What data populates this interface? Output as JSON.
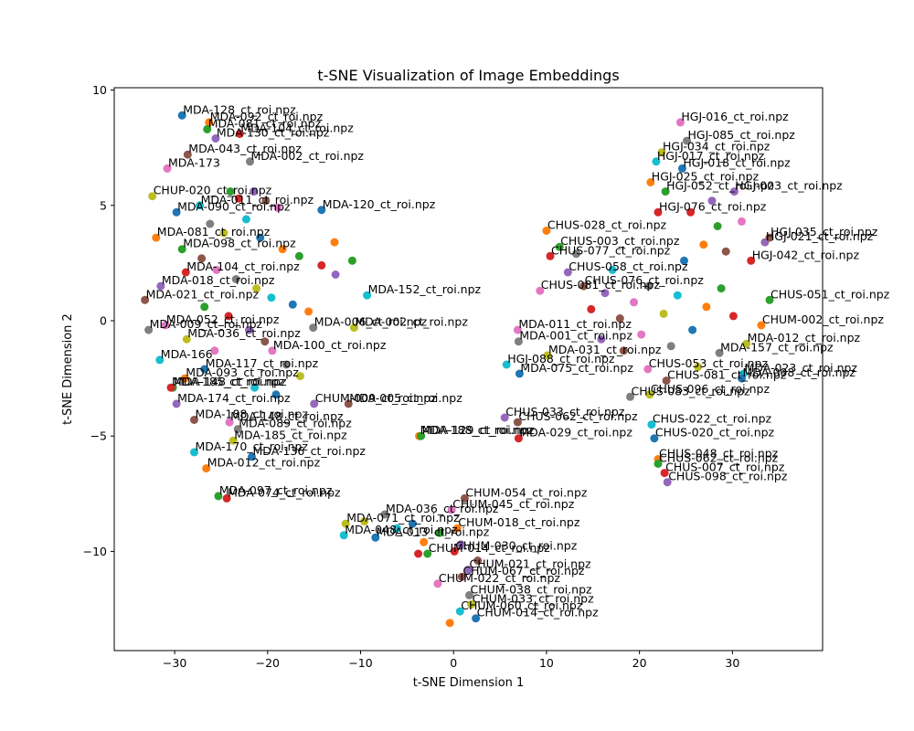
{
  "chart_data": {
    "type": "scatter",
    "title": "t-SNE Visualization of Image Embeddings",
    "xlabel": "t-SNE Dimension 1",
    "ylabel": "t-SNE Dimension 2",
    "xlim": [
      -36.5,
      39.7
    ],
    "ylim": [
      -14.3,
      10.1
    ],
    "xticks": [
      -30,
      -20,
      -10,
      0,
      10,
      20,
      30
    ],
    "yticks": [
      -10,
      -5,
      0,
      5,
      10
    ],
    "grid": false,
    "legend": "none",
    "palette": [
      "#1f77b4",
      "#ff7f0e",
      "#2ca02c",
      "#d62728",
      "#9467bd",
      "#8c564b",
      "#e377c2",
      "#7f7f7f",
      "#bcbd22",
      "#17becf"
    ],
    "points": [
      {
        "x": -29.2,
        "y": 8.9,
        "label": "MDA-128_ct_roi.npz"
      },
      {
        "x": -26.3,
        "y": 8.6,
        "label": "MDA-092_ct_roi.npz"
      },
      {
        "x": -26.5,
        "y": 8.3,
        "label": "MDA-081_ct_roi.npz"
      },
      {
        "x": -23.0,
        "y": 8.1,
        "label": "MDA-104_ct_roi.npz"
      },
      {
        "x": -25.6,
        "y": 7.9,
        "label": "MDA-130_ct_roi.npz"
      },
      {
        "x": -28.6,
        "y": 7.2,
        "label": "MDA-043_ct_roi.npz"
      },
      {
        "x": -30.8,
        "y": 6.6,
        "label": "MDA-173"
      },
      {
        "x": -21.9,
        "y": 6.9,
        "label": "MDA-002_ct_roi.npz"
      },
      {
        "x": -32.4,
        "y": 5.4,
        "label": "CHUP-020_ct_roi.npz"
      },
      {
        "x": -27.3,
        "y": 5.0,
        "label": "MDA-011_ct_roi.npz"
      },
      {
        "x": -29.8,
        "y": 4.7,
        "label": "MDA-090_ct_roi.npz"
      },
      {
        "x": -32.0,
        "y": 3.6,
        "label": "MDA-081_ct_roi.npz"
      },
      {
        "x": -29.2,
        "y": 3.1,
        "label": "MDA-098_ct_roi.npz"
      },
      {
        "x": -28.8,
        "y": 2.1,
        "label": "MDA-104_ct_roi.npz"
      },
      {
        "x": -31.5,
        "y": 1.5,
        "label": "MDA-018_ct_roi.npz"
      },
      {
        "x": -33.2,
        "y": 0.9,
        "label": "MDA-021_ct_roi.npz"
      },
      {
        "x": -31.0,
        "y": -0.2,
        "label": "MDA-052_ct_roi.npz"
      },
      {
        "x": -32.8,
        "y": -0.4,
        "label": "MDA-009_ct_roi.npz"
      },
      {
        "x": -28.7,
        "y": -0.8,
        "label": "MDA-036_ct_roi.npz"
      },
      {
        "x": -31.6,
        "y": -1.7,
        "label": "MDA-166"
      },
      {
        "x": -26.8,
        "y": -2.1,
        "label": "MDA-117_ct_roi.npz"
      },
      {
        "x": -28.9,
        "y": -2.5,
        "label": "MDA-093_ct_roi.npz"
      },
      {
        "x": -30.2,
        "y": -2.9,
        "label": "MDA-148_ct_roi.npz"
      },
      {
        "x": -30.4,
        "y": -2.9,
        "label": "MDA-185_ct_roi.npz"
      },
      {
        "x": -29.8,
        "y": -3.6,
        "label": "MDA-174_ct_roi.npz"
      },
      {
        "x": -27.9,
        "y": -4.3,
        "label": "MDA-188_ct_roi.npz"
      },
      {
        "x": -24.1,
        "y": -4.4,
        "label": "MDA-148_ct_roi.npz"
      },
      {
        "x": -23.2,
        "y": -4.7,
        "label": "MDA-089_ct_roi.npz"
      },
      {
        "x": -23.7,
        "y": -5.2,
        "label": "MDA-185_ct_roi.npz"
      },
      {
        "x": -27.9,
        "y": -5.7,
        "label": "MDA-170_ct_roi.npz"
      },
      {
        "x": -21.7,
        "y": -5.9,
        "label": "MDA-136_ct_roi.npz"
      },
      {
        "x": -26.6,
        "y": -6.4,
        "label": "MDA-012_ct_roi.npz"
      },
      {
        "x": -25.3,
        "y": -7.6,
        "label": "MDA-097_ct_roi.npz"
      },
      {
        "x": -24.4,
        "y": -7.7,
        "label": "MDA-074_ct_roi.npz"
      },
      {
        "x": -15.0,
        "y": -3.6,
        "label": "CHUM-009_ct_roi.npz"
      },
      {
        "x": -11.3,
        "y": -3.6,
        "label": "MDA-005_ct_roi.npz"
      },
      {
        "x": -19.5,
        "y": -1.3,
        "label": "MDA-100_ct_roi.npz"
      },
      {
        "x": -15.1,
        "y": -0.3,
        "label": "MDA-006_ct_roi.npz"
      },
      {
        "x": -10.7,
        "y": -0.3,
        "label": "MDA-002_ct_roi.npz"
      },
      {
        "x": -9.3,
        "y": 1.1,
        "label": "MDA-152_ct_roi.npz"
      },
      {
        "x": -14.2,
        "y": 4.8,
        "label": "MDA-120_ct_roi.npz"
      },
      {
        "x": -3.7,
        "y": -5.0,
        "label": "MDA-188_ct_roi.npz"
      },
      {
        "x": -3.5,
        "y": -5.0,
        "label": "MDA-129_ct_roi.npz"
      },
      {
        "x": 7.0,
        "y": -5.1,
        "label": "MDA-029_ct_roi.npz"
      },
      {
        "x": 5.5,
        "y": -4.2,
        "label": "CHUS-033_ct_roi.npz"
      },
      {
        "x": 6.9,
        "y": -4.4,
        "label": "CHUS-062_ct_roi.npz"
      },
      {
        "x": 6.9,
        "y": -0.4,
        "label": "MDA-011_ct_roi.npz"
      },
      {
        "x": 7.0,
        "y": -0.9,
        "label": "MDA-001_ct_roi.npz"
      },
      {
        "x": 10.1,
        "y": -1.5,
        "label": "MDA-031_ct_roi.npz"
      },
      {
        "x": 5.7,
        "y": -1.9,
        "label": "HGJ-088_ct_roi.npz"
      },
      {
        "x": 7.1,
        "y": -2.3,
        "label": "MDA-075_ct_roi.npz"
      },
      {
        "x": 10.0,
        "y": 3.9,
        "label": "CHUS-028_ct_roi.npz"
      },
      {
        "x": 11.4,
        "y": 3.2,
        "label": "CHUS-003_ct_roi.npz"
      },
      {
        "x": 10.4,
        "y": 2.8,
        "label": "CHUS-077_ct_roi.npz"
      },
      {
        "x": 12.3,
        "y": 2.1,
        "label": "CHUS-058_ct_roi.npz"
      },
      {
        "x": 14.0,
        "y": 1.5,
        "label": "CHUS-076_ct_roi.npz"
      },
      {
        "x": 9.3,
        "y": 1.3,
        "label": "CHUS-081_ct_roi.npz"
      },
      {
        "x": 19.0,
        "y": -3.3,
        "label": "CHUS-083_ct_roi.npz"
      },
      {
        "x": 21.1,
        "y": -3.2,
        "label": "CHUS-096_ct_roi.npz"
      },
      {
        "x": 21.3,
        "y": -4.5,
        "label": "CHUS-022_ct_roi.npz"
      },
      {
        "x": 21.6,
        "y": -5.1,
        "label": "CHUS-020_ct_roi.npz"
      },
      {
        "x": 22.0,
        "y": -6.0,
        "label": "CHUS-048_ct_roi.npz"
      },
      {
        "x": 22.0,
        "y": -6.2,
        "label": "CHUS-062_ct_roi.npz"
      },
      {
        "x": 22.7,
        "y": -6.6,
        "label": "CHUS-007_ct_roi.npz"
      },
      {
        "x": 23.0,
        "y": -7.0,
        "label": "CHUS-098_ct_roi.npz"
      },
      {
        "x": 22.9,
        "y": -2.6,
        "label": "CHUS-081_ct_roi.npz"
      },
      {
        "x": 20.9,
        "y": -2.1,
        "label": "CHUS-053_ct_roi.npz"
      },
      {
        "x": 28.6,
        "y": -1.4,
        "label": "MDA-157_ct_roi.npz"
      },
      {
        "x": 31.5,
        "y": -1.0,
        "label": "MDA-012_ct_roi.npz"
      },
      {
        "x": 31.2,
        "y": -2.3,
        "label": "MDA-023_ct_roi.npz"
      },
      {
        "x": 31.0,
        "y": -2.5,
        "label": "MDA-008_ct_roi.npz"
      },
      {
        "x": 33.1,
        "y": -0.2,
        "label": "CHUM-002_ct_roi.npz"
      },
      {
        "x": 34.0,
        "y": 0.9,
        "label": "CHUS-051_ct_roi.npz"
      },
      {
        "x": 32.0,
        "y": 2.6,
        "label": "HGJ-042_ct_roi.npz"
      },
      {
        "x": 33.5,
        "y": 3.4,
        "label": "HGJ-021_ct_roi.npz"
      },
      {
        "x": 34.0,
        "y": 3.6,
        "label": "HGJ-035_ct_roi.npz"
      },
      {
        "x": 24.4,
        "y": 8.6,
        "label": "HGJ-016_ct_roi.npz"
      },
      {
        "x": 25.1,
        "y": 7.8,
        "label": "HGJ-085_ct_roi.npz"
      },
      {
        "x": 22.4,
        "y": 7.3,
        "label": "HGJ-034_ct_roi.npz"
      },
      {
        "x": 21.8,
        "y": 6.9,
        "label": "HGJ-017_ct_roi.npz"
      },
      {
        "x": 24.6,
        "y": 6.6,
        "label": "HGJ-018_ct_roi.npz"
      },
      {
        "x": 21.2,
        "y": 6.0,
        "label": "HGJ-025_ct_roi.npz"
      },
      {
        "x": 22.8,
        "y": 5.6,
        "label": "HGJ-052_ct_roi.npz"
      },
      {
        "x": 22.0,
        "y": 4.7,
        "label": "HGJ-076_ct_roi.npz"
      },
      {
        "x": 30.2,
        "y": 5.6,
        "label": "HGJ-003_ct_roi.npz"
      },
      {
        "x": 1.2,
        "y": -7.7,
        "label": "CHUM-054_ct_roi.npz"
      },
      {
        "x": -0.2,
        "y": -8.2,
        "label": "CHUM-045_ct_roi.npz"
      },
      {
        "x": -7.4,
        "y": -8.4,
        "label": "MDA-036_ct_roi.npz"
      },
      {
        "x": -11.6,
        "y": -8.8,
        "label": "MDA-071_ct_roi.npz"
      },
      {
        "x": -11.8,
        "y": -9.3,
        "label": "MDA-048_ct_roi.npz"
      },
      {
        "x": -8.4,
        "y": -9.4,
        "label": "MDA-013_ct_roi.npz"
      },
      {
        "x": 0.4,
        "y": -9.0,
        "label": "CHUM-018_ct_roi.npz"
      },
      {
        "x": -2.8,
        "y": -10.1,
        "label": "CHUM-014_ct_roi.npz"
      },
      {
        "x": 0.1,
        "y": -10.0,
        "label": "CHUM-030_ct_roi.npz"
      },
      {
        "x": 1.6,
        "y": -10.8,
        "label": "CHUM-021_ct_roi.npz"
      },
      {
        "x": 0.9,
        "y": -11.1,
        "label": "CHUM-067_ct_roi.npz"
      },
      {
        "x": -1.7,
        "y": -11.4,
        "label": "CHUM-022_ct_roi.npz"
      },
      {
        "x": 1.7,
        "y": -11.9,
        "label": "CHUM-038_ct_roi.npz"
      },
      {
        "x": 1.9,
        "y": -12.3,
        "label": "CHUM-033_ct_roi.npz"
      },
      {
        "x": 0.7,
        "y": -12.6,
        "label": "CHUM-060_ct_roi.npz"
      },
      {
        "x": 2.4,
        "y": -12.9,
        "label": "CHUM-014_ct_roi.npz"
      },
      {
        "x": -0.4,
        "y": -13.1,
        "label": ""
      },
      {
        "x": -24.0,
        "y": 5.6,
        "label": ""
      },
      {
        "x": -23.1,
        "y": 5.3,
        "label": ""
      },
      {
        "x": -21.5,
        "y": 5.6,
        "label": ""
      },
      {
        "x": -20.2,
        "y": 5.2,
        "label": ""
      },
      {
        "x": -18.9,
        "y": 4.9,
        "label": ""
      },
      {
        "x": -26.2,
        "y": 4.2,
        "label": ""
      },
      {
        "x": -24.7,
        "y": 3.8,
        "label": ""
      },
      {
        "x": -22.3,
        "y": 4.4,
        "label": ""
      },
      {
        "x": -20.8,
        "y": 3.6,
        "label": ""
      },
      {
        "x": -18.4,
        "y": 3.1,
        "label": ""
      },
      {
        "x": -16.6,
        "y": 2.8,
        "label": ""
      },
      {
        "x": -14.2,
        "y": 2.4,
        "label": ""
      },
      {
        "x": -12.7,
        "y": 2.0,
        "label": ""
      },
      {
        "x": -27.1,
        "y": 2.7,
        "label": ""
      },
      {
        "x": -25.5,
        "y": 2.2,
        "label": ""
      },
      {
        "x": -23.4,
        "y": 1.8,
        "label": ""
      },
      {
        "x": -21.2,
        "y": 1.4,
        "label": ""
      },
      {
        "x": -19.6,
        "y": 1.0,
        "label": ""
      },
      {
        "x": -17.3,
        "y": 0.7,
        "label": ""
      },
      {
        "x": -15.6,
        "y": 0.4,
        "label": ""
      },
      {
        "x": -26.8,
        "y": 0.6,
        "label": ""
      },
      {
        "x": -24.2,
        "y": 0.2,
        "label": ""
      },
      {
        "x": -22.0,
        "y": -0.4,
        "label": ""
      },
      {
        "x": -20.3,
        "y": -0.9,
        "label": ""
      },
      {
        "x": -25.7,
        "y": -1.3,
        "label": ""
      },
      {
        "x": -18.0,
        "y": -1.9,
        "label": ""
      },
      {
        "x": -16.5,
        "y": -2.4,
        "label": ""
      },
      {
        "x": -21.4,
        "y": -2.9,
        "label": ""
      },
      {
        "x": -19.1,
        "y": -3.2,
        "label": ""
      },
      {
        "x": -12.8,
        "y": 3.4,
        "label": ""
      },
      {
        "x": -10.9,
        "y": 2.6,
        "label": ""
      },
      {
        "x": 14.8,
        "y": 0.5,
        "label": ""
      },
      {
        "x": 16.3,
        "y": 1.2,
        "label": ""
      },
      {
        "x": 17.9,
        "y": 0.1,
        "label": ""
      },
      {
        "x": 19.4,
        "y": 0.8,
        "label": ""
      },
      {
        "x": 21.0,
        "y": 1.5,
        "label": ""
      },
      {
        "x": 22.6,
        "y": 0.3,
        "label": ""
      },
      {
        "x": 24.1,
        "y": 1.1,
        "label": ""
      },
      {
        "x": 25.7,
        "y": -0.4,
        "label": ""
      },
      {
        "x": 27.2,
        "y": 0.6,
        "label": ""
      },
      {
        "x": 28.8,
        "y": 1.4,
        "label": ""
      },
      {
        "x": 30.1,
        "y": 0.2,
        "label": ""
      },
      {
        "x": 15.9,
        "y": -0.8,
        "label": ""
      },
      {
        "x": 18.3,
        "y": -1.3,
        "label": ""
      },
      {
        "x": 20.2,
        "y": -0.6,
        "label": ""
      },
      {
        "x": 23.4,
        "y": -1.1,
        "label": ""
      },
      {
        "x": 26.3,
        "y": -2.0,
        "label": ""
      },
      {
        "x": 17.1,
        "y": 2.2,
        "label": ""
      },
      {
        "x": 24.8,
        "y": 2.6,
        "label": ""
      },
      {
        "x": 26.9,
        "y": 3.3,
        "label": ""
      },
      {
        "x": 28.4,
        "y": 4.1,
        "label": ""
      },
      {
        "x": 25.5,
        "y": 4.7,
        "label": ""
      },
      {
        "x": 27.8,
        "y": 5.2,
        "label": ""
      },
      {
        "x": 29.3,
        "y": 3.0,
        "label": ""
      },
      {
        "x": 31.0,
        "y": 4.3,
        "label": ""
      },
      {
        "x": 13.2,
        "y": 2.9,
        "label": ""
      },
      {
        "x": -9.6,
        "y": -8.7,
        "label": ""
      },
      {
        "x": -6.1,
        "y": -9.0,
        "label": ""
      },
      {
        "x": -4.4,
        "y": -8.8,
        "label": ""
      },
      {
        "x": -3.2,
        "y": -9.6,
        "label": ""
      },
      {
        "x": -1.5,
        "y": -9.2,
        "label": ""
      },
      {
        "x": -3.8,
        "y": -10.1,
        "label": ""
      },
      {
        "x": 0.8,
        "y": -9.7,
        "label": ""
      },
      {
        "x": 2.6,
        "y": -10.4,
        "label": ""
      }
    ]
  }
}
